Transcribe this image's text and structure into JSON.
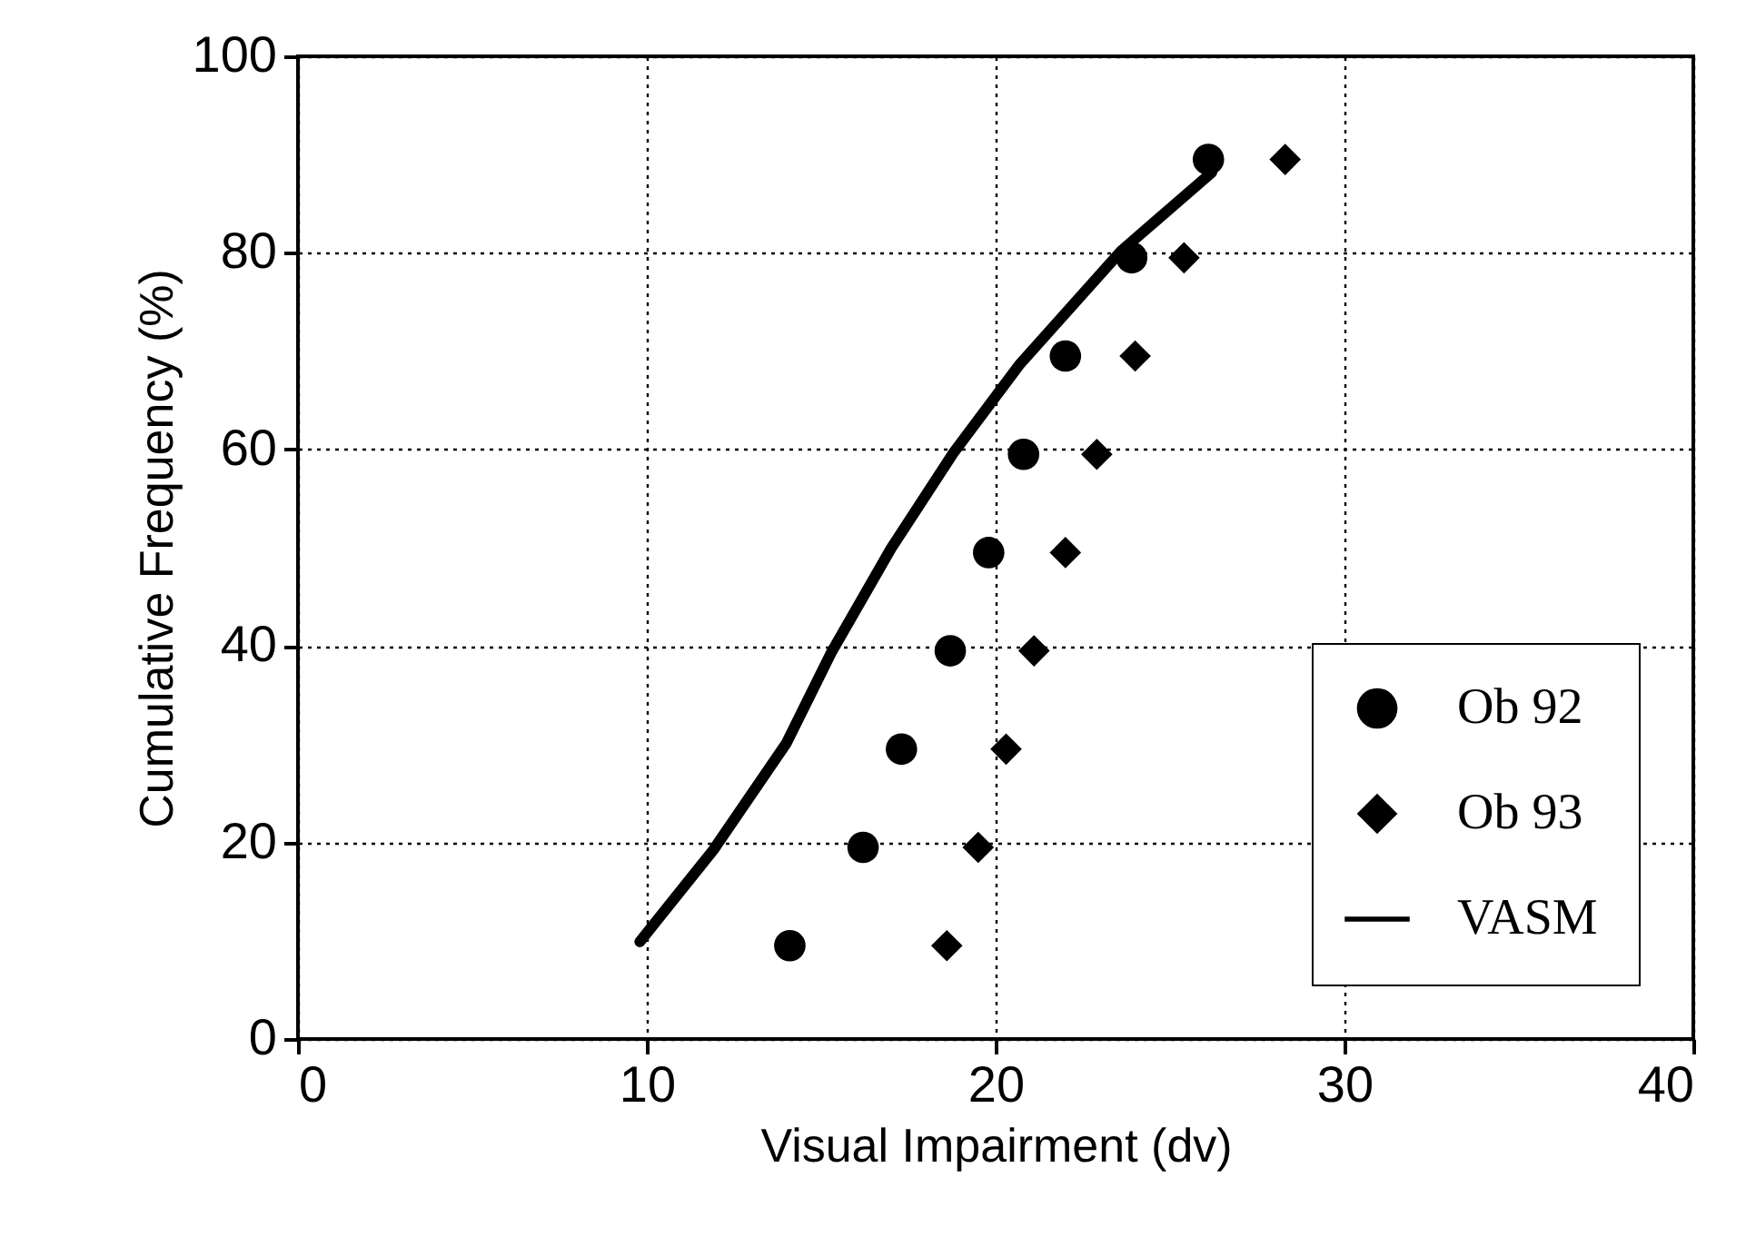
{
  "chart_data": {
    "type": "scatter",
    "xlabel": "Visual Impairment (dv)",
    "ylabel": "Cumulative Frequency (%)",
    "xlim": [
      0,
      40
    ],
    "xticks": [
      0,
      10,
      20,
      30,
      40
    ],
    "ylim": [
      0,
      100
    ],
    "yticks": [
      0,
      20,
      40,
      60,
      80,
      100
    ],
    "grid": true,
    "legend": "bottom right",
    "series": [
      {
        "name": "Ob 92",
        "marker": "circle",
        "color": "#000000",
        "x": [
          14.1,
          16.2,
          17.3,
          18.7,
          19.8,
          20.8,
          22.0,
          23.9,
          26.1
        ],
        "values": [
          9.5,
          19.5,
          29.5,
          39.5,
          49.5,
          59.5,
          69.5,
          79.5,
          89.5
        ]
      },
      {
        "name": "Ob 93",
        "marker": "diamond",
        "color": "#000000",
        "x": [
          18.6,
          19.5,
          20.3,
          21.1,
          22.0,
          22.9,
          24.0,
          25.4,
          28.3
        ],
        "values": [
          9.5,
          19.5,
          29.5,
          39.5,
          49.5,
          59.5,
          69.5,
          79.5,
          89.5
        ]
      },
      {
        "name": "VASM",
        "type": "line",
        "line_style": "solid",
        "color": "#000000",
        "x": [
          9.8,
          11.9,
          14.0,
          15.3,
          17.0,
          18.8,
          20.7,
          23.6,
          26.2
        ],
        "values": [
          9.9,
          19.2,
          30.1,
          39.4,
          49.9,
          59.7,
          68.7,
          80.2,
          88.2
        ]
      }
    ]
  }
}
